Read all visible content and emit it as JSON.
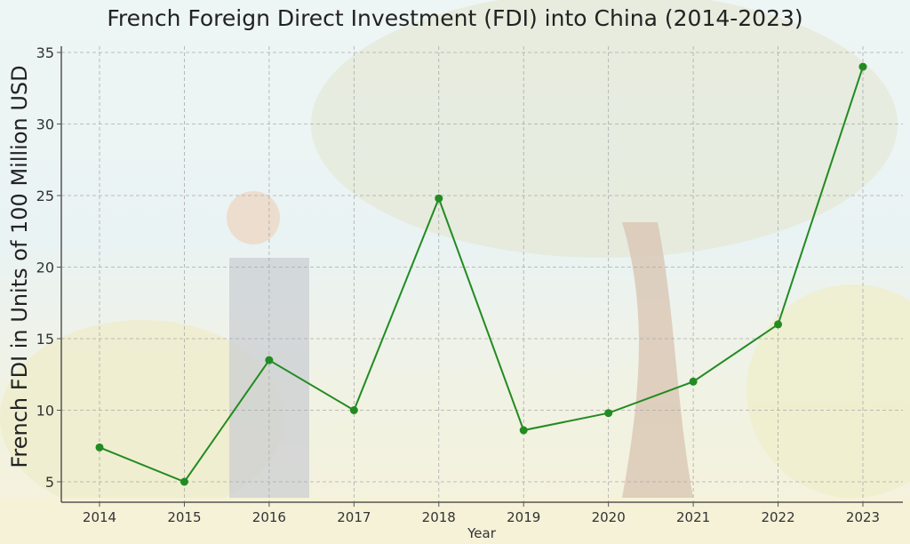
{
  "chart_data": {
    "type": "line",
    "title": "French Foreign Direct Investment (FDI) into China (2014-2023)",
    "xlabel": "Year",
    "ylabel": "French FDI in Units of 100 Million USD",
    "categories": [
      "2014",
      "2015",
      "2016",
      "2017",
      "2018",
      "2019",
      "2020",
      "2021",
      "2022",
      "2023"
    ],
    "values": [
      7.4,
      5.0,
      13.5,
      10.0,
      24.8,
      8.6,
      9.8,
      12.0,
      16.0,
      34.0
    ],
    "yticks": [
      5,
      10,
      15,
      20,
      25,
      30,
      35
    ],
    "ylim": [
      3.6,
      35.5
    ],
    "grid": true,
    "line_color": "#228b22",
    "marker": "circle"
  }
}
